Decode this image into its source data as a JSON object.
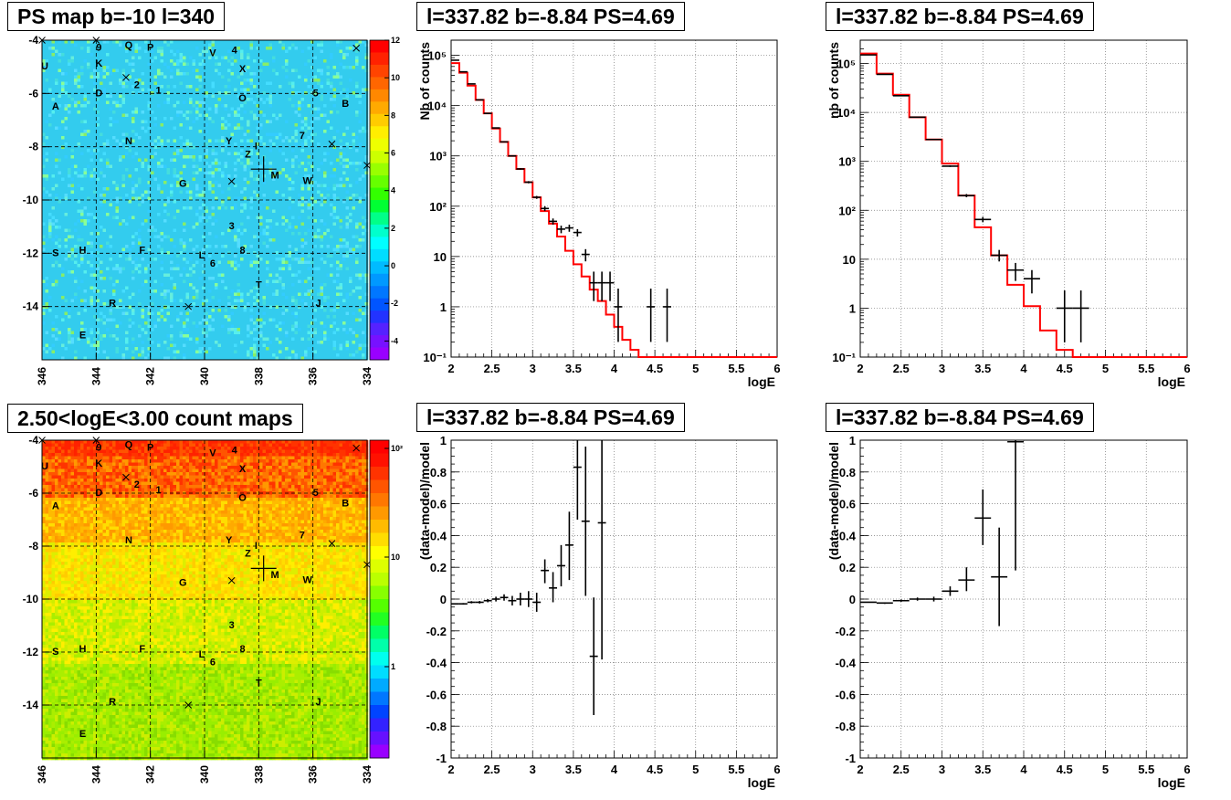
{
  "titles": {
    "map_top": "PS map b=-10 l=340",
    "map_bottom": "2.50<logE<3.00 count maps",
    "spec_mid": "l=337.82 b=-8.84 PS=4.69",
    "spec_right": "l=337.82 b=-8.84 PS=4.69",
    "res_mid": "l=337.82 b=-8.84 PS=4.69",
    "res_right": "l=337.82 b=-8.84 PS=4.69"
  },
  "chart_data": [
    {
      "id": "map_top",
      "type": "heatmap",
      "title": "PS map b=-10 l=340",
      "xlim": [
        346,
        334
      ],
      "ylim": [
        -16,
        -4
      ],
      "xticks": [
        "346",
        "344",
        "342",
        "340",
        "338",
        "336",
        "334"
      ],
      "yticks": [
        "-4",
        "-6",
        "-8",
        "-10",
        "-12",
        "-14"
      ],
      "zlim": [
        -5,
        12
      ],
      "zticks": [
        "12",
        "10",
        "8",
        "6",
        "4",
        "2",
        "0",
        "-2",
        "-4"
      ],
      "dominant_color": "#33ccee",
      "marker": {
        "l": 337.82,
        "b": -8.84
      },
      "labels": [
        {
          "t": "9",
          "l": 343.9,
          "b": -4.4
        },
        {
          "t": "Q",
          "l": 342.8,
          "b": -4.3
        },
        {
          "t": "P",
          "l": 342.0,
          "b": -4.4
        },
        {
          "t": "V",
          "l": 339.7,
          "b": -4.6
        },
        {
          "t": "4",
          "l": 338.9,
          "b": -4.5
        },
        {
          "t": "U",
          "l": 345.9,
          "b": -5.1
        },
        {
          "t": "K",
          "l": 343.9,
          "b": -5.0
        },
        {
          "t": "X",
          "l": 338.6,
          "b": -5.2
        },
        {
          "t": "2",
          "l": 342.5,
          "b": -5.8
        },
        {
          "t": "1",
          "l": 341.7,
          "b": -6.0
        },
        {
          "t": "D",
          "l": 343.9,
          "b": -6.1
        },
        {
          "t": "O",
          "l": 338.6,
          "b": -6.3
        },
        {
          "t": "5",
          "l": 335.9,
          "b": -6.1
        },
        {
          "t": "B",
          "l": 334.8,
          "b": -6.5
        },
        {
          "t": "A",
          "l": 345.5,
          "b": -6.6
        },
        {
          "t": "N",
          "l": 342.8,
          "b": -7.9
        },
        {
          "t": "Y",
          "l": 339.1,
          "b": -7.9
        },
        {
          "t": "7",
          "l": 336.4,
          "b": -7.7
        },
        {
          "t": "I",
          "l": 338.1,
          "b": -8.1
        },
        {
          "t": "Z",
          "l": 338.4,
          "b": -8.4
        },
        {
          "t": "M",
          "l": 337.4,
          "b": -9.2
        },
        {
          "t": "W",
          "l": 336.2,
          "b": -9.4
        },
        {
          "t": "G",
          "l": 340.8,
          "b": -9.5
        },
        {
          "t": "3",
          "l": 339.0,
          "b": -11.1
        },
        {
          "t": "S",
          "l": 345.5,
          "b": -12.1
        },
        {
          "t": "H",
          "l": 344.5,
          "b": -12.0
        },
        {
          "t": "F",
          "l": 342.3,
          "b": -12.0
        },
        {
          "t": "8",
          "l": 338.6,
          "b": -12.0
        },
        {
          "t": "L",
          "l": 340.1,
          "b": -12.2
        },
        {
          "t": "6",
          "l": 339.7,
          "b": -12.5
        },
        {
          "t": "T",
          "l": 338.0,
          "b": -13.3
        },
        {
          "t": "R",
          "l": 343.4,
          "b": -14.0
        },
        {
          "t": "J",
          "l": 335.8,
          "b": -14.0
        },
        {
          "t": "E",
          "l": 344.5,
          "b": -15.2
        }
      ],
      "crosses": [
        {
          "l": 346.0,
          "b": -4.0
        },
        {
          "l": 344.0,
          "b": -4.0
        },
        {
          "l": 342.9,
          "b": -5.4
        },
        {
          "l": 334.4,
          "b": -4.3
        },
        {
          "l": 335.3,
          "b": -7.9
        },
        {
          "l": 339.0,
          "b": -9.3
        },
        {
          "l": 334.0,
          "b": -8.7
        },
        {
          "l": 340.6,
          "b": -14.0
        }
      ]
    },
    {
      "id": "map_bottom",
      "type": "heatmap",
      "title": "2.50<logE<3.00 count maps",
      "xlim": [
        346,
        334
      ],
      "ylim": [
        -16,
        -4
      ],
      "xticks": [
        "346",
        "344",
        "342",
        "340",
        "338",
        "336",
        "334"
      ],
      "yticks": [
        "-4",
        "-6",
        "-8",
        "-10",
        "-12",
        "-14"
      ],
      "zscale": "log",
      "zticks": [
        "10²",
        "10",
        "1"
      ],
      "top_color": "#ff3300",
      "bottom_color": "#66dd00",
      "marker": {
        "l": 337.82,
        "b": -8.84
      }
    },
    {
      "id": "spec_mid",
      "type": "line",
      "title": "l=337.82 b=-8.84 PS=4.69",
      "xlabel": "logE",
      "ylabel": "Nb of counts",
      "xlim": [
        2,
        6
      ],
      "ylim": [
        0.1,
        200000
      ],
      "yscale": "log",
      "grid": true,
      "xticks": [
        "2",
        "2.5",
        "3",
        "3.5",
        "4",
        "4.5",
        "5",
        "5.5",
        "6"
      ],
      "yticks": [
        "10⁻¹",
        "1",
        "10",
        "10²",
        "10³",
        "10⁴",
        "10⁵"
      ],
      "series": [
        {
          "type": "step",
          "color": "#ff0000",
          "bin_edges": [
            2.0,
            2.1,
            2.2,
            2.3,
            2.4,
            2.5,
            2.6,
            2.7,
            2.8,
            2.9,
            3.0,
            3.1,
            3.2,
            3.3,
            3.4,
            3.5,
            3.6,
            3.7,
            3.8,
            3.9,
            4.0,
            4.1,
            4.2,
            4.3,
            4.4,
            4.5,
            6.0
          ],
          "values": [
            70000,
            45000,
            25000,
            13000,
            7000,
            3500,
            1900,
            1000,
            550,
            300,
            150,
            80,
            45,
            25,
            13,
            7,
            4,
            2.2,
            1.3,
            0.7,
            0.4,
            0.22,
            0.14,
            0.1,
            0.1,
            0.1
          ]
        },
        {
          "type": "errorbar",
          "color": "#000000",
          "points": [
            {
              "x": 2.05,
              "y": 80000,
              "lo": 79700,
              "hi": 80300
            },
            {
              "x": 2.15,
              "y": 47000,
              "lo": 46800,
              "hi": 47200
            },
            {
              "x": 2.25,
              "y": 27000,
              "lo": 26800,
              "hi": 27200
            },
            {
              "x": 2.35,
              "y": 13000,
              "lo": 12900,
              "hi": 13100
            },
            {
              "x": 2.45,
              "y": 7000,
              "lo": 6900,
              "hi": 7100
            },
            {
              "x": 2.55,
              "y": 3600,
              "lo": 3540,
              "hi": 3660
            },
            {
              "x": 2.65,
              "y": 1900,
              "lo": 1860,
              "hi": 1940
            },
            {
              "x": 2.75,
              "y": 1000,
              "lo": 970,
              "hi": 1030
            },
            {
              "x": 2.85,
              "y": 550,
              "lo": 530,
              "hi": 570
            },
            {
              "x": 2.95,
              "y": 300,
              "lo": 285,
              "hi": 315
            },
            {
              "x": 3.05,
              "y": 150,
              "lo": 140,
              "hi": 160
            },
            {
              "x": 3.15,
              "y": 90,
              "lo": 80,
              "hi": 100
            },
            {
              "x": 3.25,
              "y": 50,
              "lo": 43,
              "hi": 57
            },
            {
              "x": 3.35,
              "y": 35,
              "lo": 29,
              "hi": 41
            },
            {
              "x": 3.45,
              "y": 37,
              "lo": 31,
              "hi": 43
            },
            {
              "x": 3.55,
              "y": 30,
              "lo": 25,
              "hi": 35
            },
            {
              "x": 3.65,
              "y": 11,
              "lo": 8,
              "hi": 14
            },
            {
              "x": 3.75,
              "y": 3,
              "lo": 1.3,
              "hi": 5
            },
            {
              "x": 3.85,
              "y": 3,
              "lo": 1.3,
              "hi": 5
            },
            {
              "x": 3.95,
              "y": 3,
              "lo": 1.3,
              "hi": 5
            },
            {
              "x": 4.05,
              "y": 1,
              "lo": 0.2,
              "hi": 2.3
            },
            {
              "x": 4.45,
              "y": 1,
              "lo": 0.2,
              "hi": 2.3
            },
            {
              "x": 4.65,
              "y": 1,
              "lo": 0.2,
              "hi": 2.3
            }
          ]
        }
      ]
    },
    {
      "id": "spec_right",
      "type": "line",
      "title": "l=337.82 b=-8.84 PS=4.69",
      "xlabel": "logE",
      "ylabel": "nb of counts",
      "xlim": [
        2,
        6
      ],
      "ylim": [
        0.1,
        300000
      ],
      "yscale": "log",
      "grid": true,
      "xticks": [
        "2",
        "2.5",
        "3",
        "3.5",
        "4",
        "4.5",
        "5",
        "5.5",
        "6"
      ],
      "yticks": [
        "10⁻¹",
        "1",
        "10",
        "10²",
        "10³",
        "10⁴",
        "10⁵"
      ],
      "series": [
        {
          "type": "step",
          "color": "#ff0000",
          "bin_edges": [
            2.0,
            2.2,
            2.4,
            2.6,
            2.8,
            3.0,
            3.2,
            3.4,
            3.6,
            3.8,
            4.0,
            4.2,
            4.4,
            4.6,
            6.0
          ],
          "values": [
            160000,
            62000,
            23000,
            8000,
            2800,
            900,
            200,
            45,
            12,
            3,
            1.1,
            0.35,
            0.14,
            0.1
          ]
        },
        {
          "type": "errorbar",
          "color": "#000000",
          "points": [
            {
              "x": 2.1,
              "y": 150000,
              "lo": 149500,
              "hi": 150500
            },
            {
              "x": 2.3,
              "y": 60000,
              "lo": 59700,
              "hi": 60300
            },
            {
              "x": 2.5,
              "y": 22000,
              "lo": 21800,
              "hi": 22200
            },
            {
              "x": 2.7,
              "y": 8000,
              "lo": 7900,
              "hi": 8100
            },
            {
              "x": 2.9,
              "y": 2800,
              "lo": 2750,
              "hi": 2850
            },
            {
              "x": 3.1,
              "y": 800,
              "lo": 770,
              "hi": 830
            },
            {
              "x": 3.3,
              "y": 200,
              "lo": 185,
              "hi": 215
            },
            {
              "x": 3.5,
              "y": 65,
              "lo": 57,
              "hi": 73
            },
            {
              "x": 3.7,
              "y": 12,
              "lo": 9,
              "hi": 15.5
            },
            {
              "x": 3.9,
              "y": 6,
              "lo": 3.6,
              "hi": 8.4
            },
            {
              "x": 4.1,
              "y": 4,
              "lo": 2,
              "hi": 6
            },
            {
              "x": 4.5,
              "y": 1,
              "lo": 0.2,
              "hi": 2.3
            },
            {
              "x": 4.7,
              "y": 1,
              "lo": 0.2,
              "hi": 2.3
            }
          ]
        }
      ]
    },
    {
      "id": "res_mid",
      "type": "scatter",
      "title": "l=337.82 b=-8.84 PS=4.69",
      "xlabel": "logE",
      "ylabel": "(data-model)/model",
      "xlim": [
        2,
        6
      ],
      "ylim": [
        -1,
        1
      ],
      "grid": true,
      "xticks": [
        "2",
        "2.5",
        "3",
        "3.5",
        "4",
        "4.5",
        "5",
        "5.5",
        "6"
      ],
      "yticks": [
        "1",
        "0.8",
        "0.6",
        "0.4",
        "0.2",
        "0",
        "-0.2",
        "-0.4",
        "-0.6",
        "-0.8",
        "-1"
      ],
      "series": [
        {
          "type": "errorbar",
          "color": "#000000",
          "xwidth": 0.05,
          "points": [
            {
              "x": 2.05,
              "y": -0.03,
              "lo": -0.034,
              "hi": -0.026
            },
            {
              "x": 2.15,
              "y": -0.03,
              "lo": -0.035,
              "hi": -0.025
            },
            {
              "x": 2.25,
              "y": -0.02,
              "lo": -0.027,
              "hi": -0.013
            },
            {
              "x": 2.35,
              "y": -0.02,
              "lo": -0.028,
              "hi": -0.012
            },
            {
              "x": 2.45,
              "y": -0.01,
              "lo": -0.02,
              "hi": 0.0
            },
            {
              "x": 2.55,
              "y": 0.0,
              "lo": -0.015,
              "hi": 0.015
            },
            {
              "x": 2.65,
              "y": 0.01,
              "lo": -0.01,
              "hi": 0.03
            },
            {
              "x": 2.75,
              "y": -0.01,
              "lo": -0.04,
              "hi": 0.02
            },
            {
              "x": 2.85,
              "y": 0.0,
              "lo": -0.04,
              "hi": 0.04
            },
            {
              "x": 2.95,
              "y": 0.0,
              "lo": -0.05,
              "hi": 0.05
            },
            {
              "x": 3.05,
              "y": -0.02,
              "lo": -0.08,
              "hi": 0.04
            },
            {
              "x": 3.15,
              "y": 0.18,
              "lo": 0.1,
              "hi": 0.25
            },
            {
              "x": 3.25,
              "y": 0.07,
              "lo": -0.02,
              "hi": 0.17
            },
            {
              "x": 3.35,
              "y": 0.21,
              "lo": 0.08,
              "hi": 0.34
            },
            {
              "x": 3.45,
              "y": 0.34,
              "lo": 0.12,
              "hi": 0.55
            },
            {
              "x": 3.55,
              "y": 0.83,
              "lo": 0.5,
              "hi": 1.0
            },
            {
              "x": 3.65,
              "y": 0.49,
              "lo": 0.02,
              "hi": 0.96
            },
            {
              "x": 3.75,
              "y": -0.36,
              "lo": -0.73,
              "hi": 0.01
            },
            {
              "x": 3.85,
              "y": 0.48,
              "lo": -0.38,
              "hi": 1.0
            }
          ]
        }
      ]
    },
    {
      "id": "res_right",
      "type": "scatter",
      "title": "l=337.82 b=-8.84 PS=4.69",
      "xlabel": "logE",
      "ylabel": "(data-model)/model",
      "xlim": [
        2,
        6
      ],
      "ylim": [
        -1,
        1
      ],
      "grid": true,
      "xticks": [
        "2",
        "2.5",
        "3",
        "3.5",
        "4",
        "4.5",
        "5",
        "5.5",
        "6"
      ],
      "yticks": [
        "1",
        "0.8",
        "0.6",
        "0.4",
        "0.2",
        "0",
        "-0.2",
        "-0.4",
        "-0.6",
        "-0.8",
        "-1"
      ],
      "series": [
        {
          "type": "errorbar",
          "color": "#000000",
          "xwidth": 0.1,
          "points": [
            {
              "x": 2.1,
              "y": -0.02,
              "lo": -0.023,
              "hi": -0.017
            },
            {
              "x": 2.3,
              "y": -0.025,
              "lo": -0.03,
              "hi": -0.02
            },
            {
              "x": 2.5,
              "y": -0.01,
              "lo": -0.017,
              "hi": -0.003
            },
            {
              "x": 2.7,
              "y": 0.0,
              "lo": -0.01,
              "hi": 0.01
            },
            {
              "x": 2.9,
              "y": 0.0,
              "lo": -0.015,
              "hi": 0.015
            },
            {
              "x": 3.1,
              "y": 0.05,
              "lo": 0.02,
              "hi": 0.08
            },
            {
              "x": 3.3,
              "y": 0.12,
              "lo": 0.05,
              "hi": 0.2
            },
            {
              "x": 3.5,
              "y": 0.51,
              "lo": 0.34,
              "hi": 0.69
            },
            {
              "x": 3.7,
              "y": 0.14,
              "lo": -0.17,
              "hi": 0.45
            },
            {
              "x": 3.9,
              "y": 0.99,
              "lo": 0.18,
              "hi": 1.0
            }
          ]
        }
      ]
    }
  ]
}
